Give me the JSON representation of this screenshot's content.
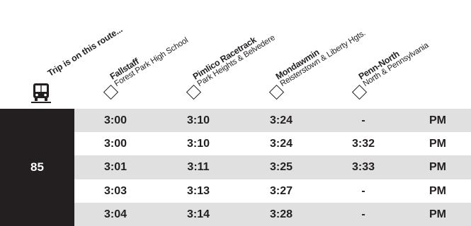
{
  "header": {
    "trip_label": "Trip is on this route...",
    "stops": [
      {
        "name": "Fallstaff",
        "sub": "Forest Park High School"
      },
      {
        "name": "Pimlico Racetrack",
        "sub": "Park Heights & Belvedere"
      },
      {
        "name": "Mondawmin",
        "sub": "Reisterstown & Liberty Hgts."
      },
      {
        "name": "Penn-North",
        "sub": "North & Pennsylvania"
      }
    ]
  },
  "route": "85",
  "rows": [
    {
      "times": [
        "3:00",
        "3:10",
        "3:24",
        "-"
      ],
      "period": "PM"
    },
    {
      "times": [
        "3:00",
        "3:10",
        "3:24",
        "3:32"
      ],
      "period": "PM"
    },
    {
      "times": [
        "3:01",
        "3:11",
        "3:25",
        "3:33"
      ],
      "period": "PM"
    },
    {
      "times": [
        "3:03",
        "3:13",
        "3:27",
        "-"
      ],
      "period": "PM"
    },
    {
      "times": [
        "3:04",
        "3:14",
        "3:28",
        "-"
      ],
      "period": "PM"
    }
  ],
  "colors": {
    "dark": "#231f20",
    "shade": "#e0e0e1"
  }
}
